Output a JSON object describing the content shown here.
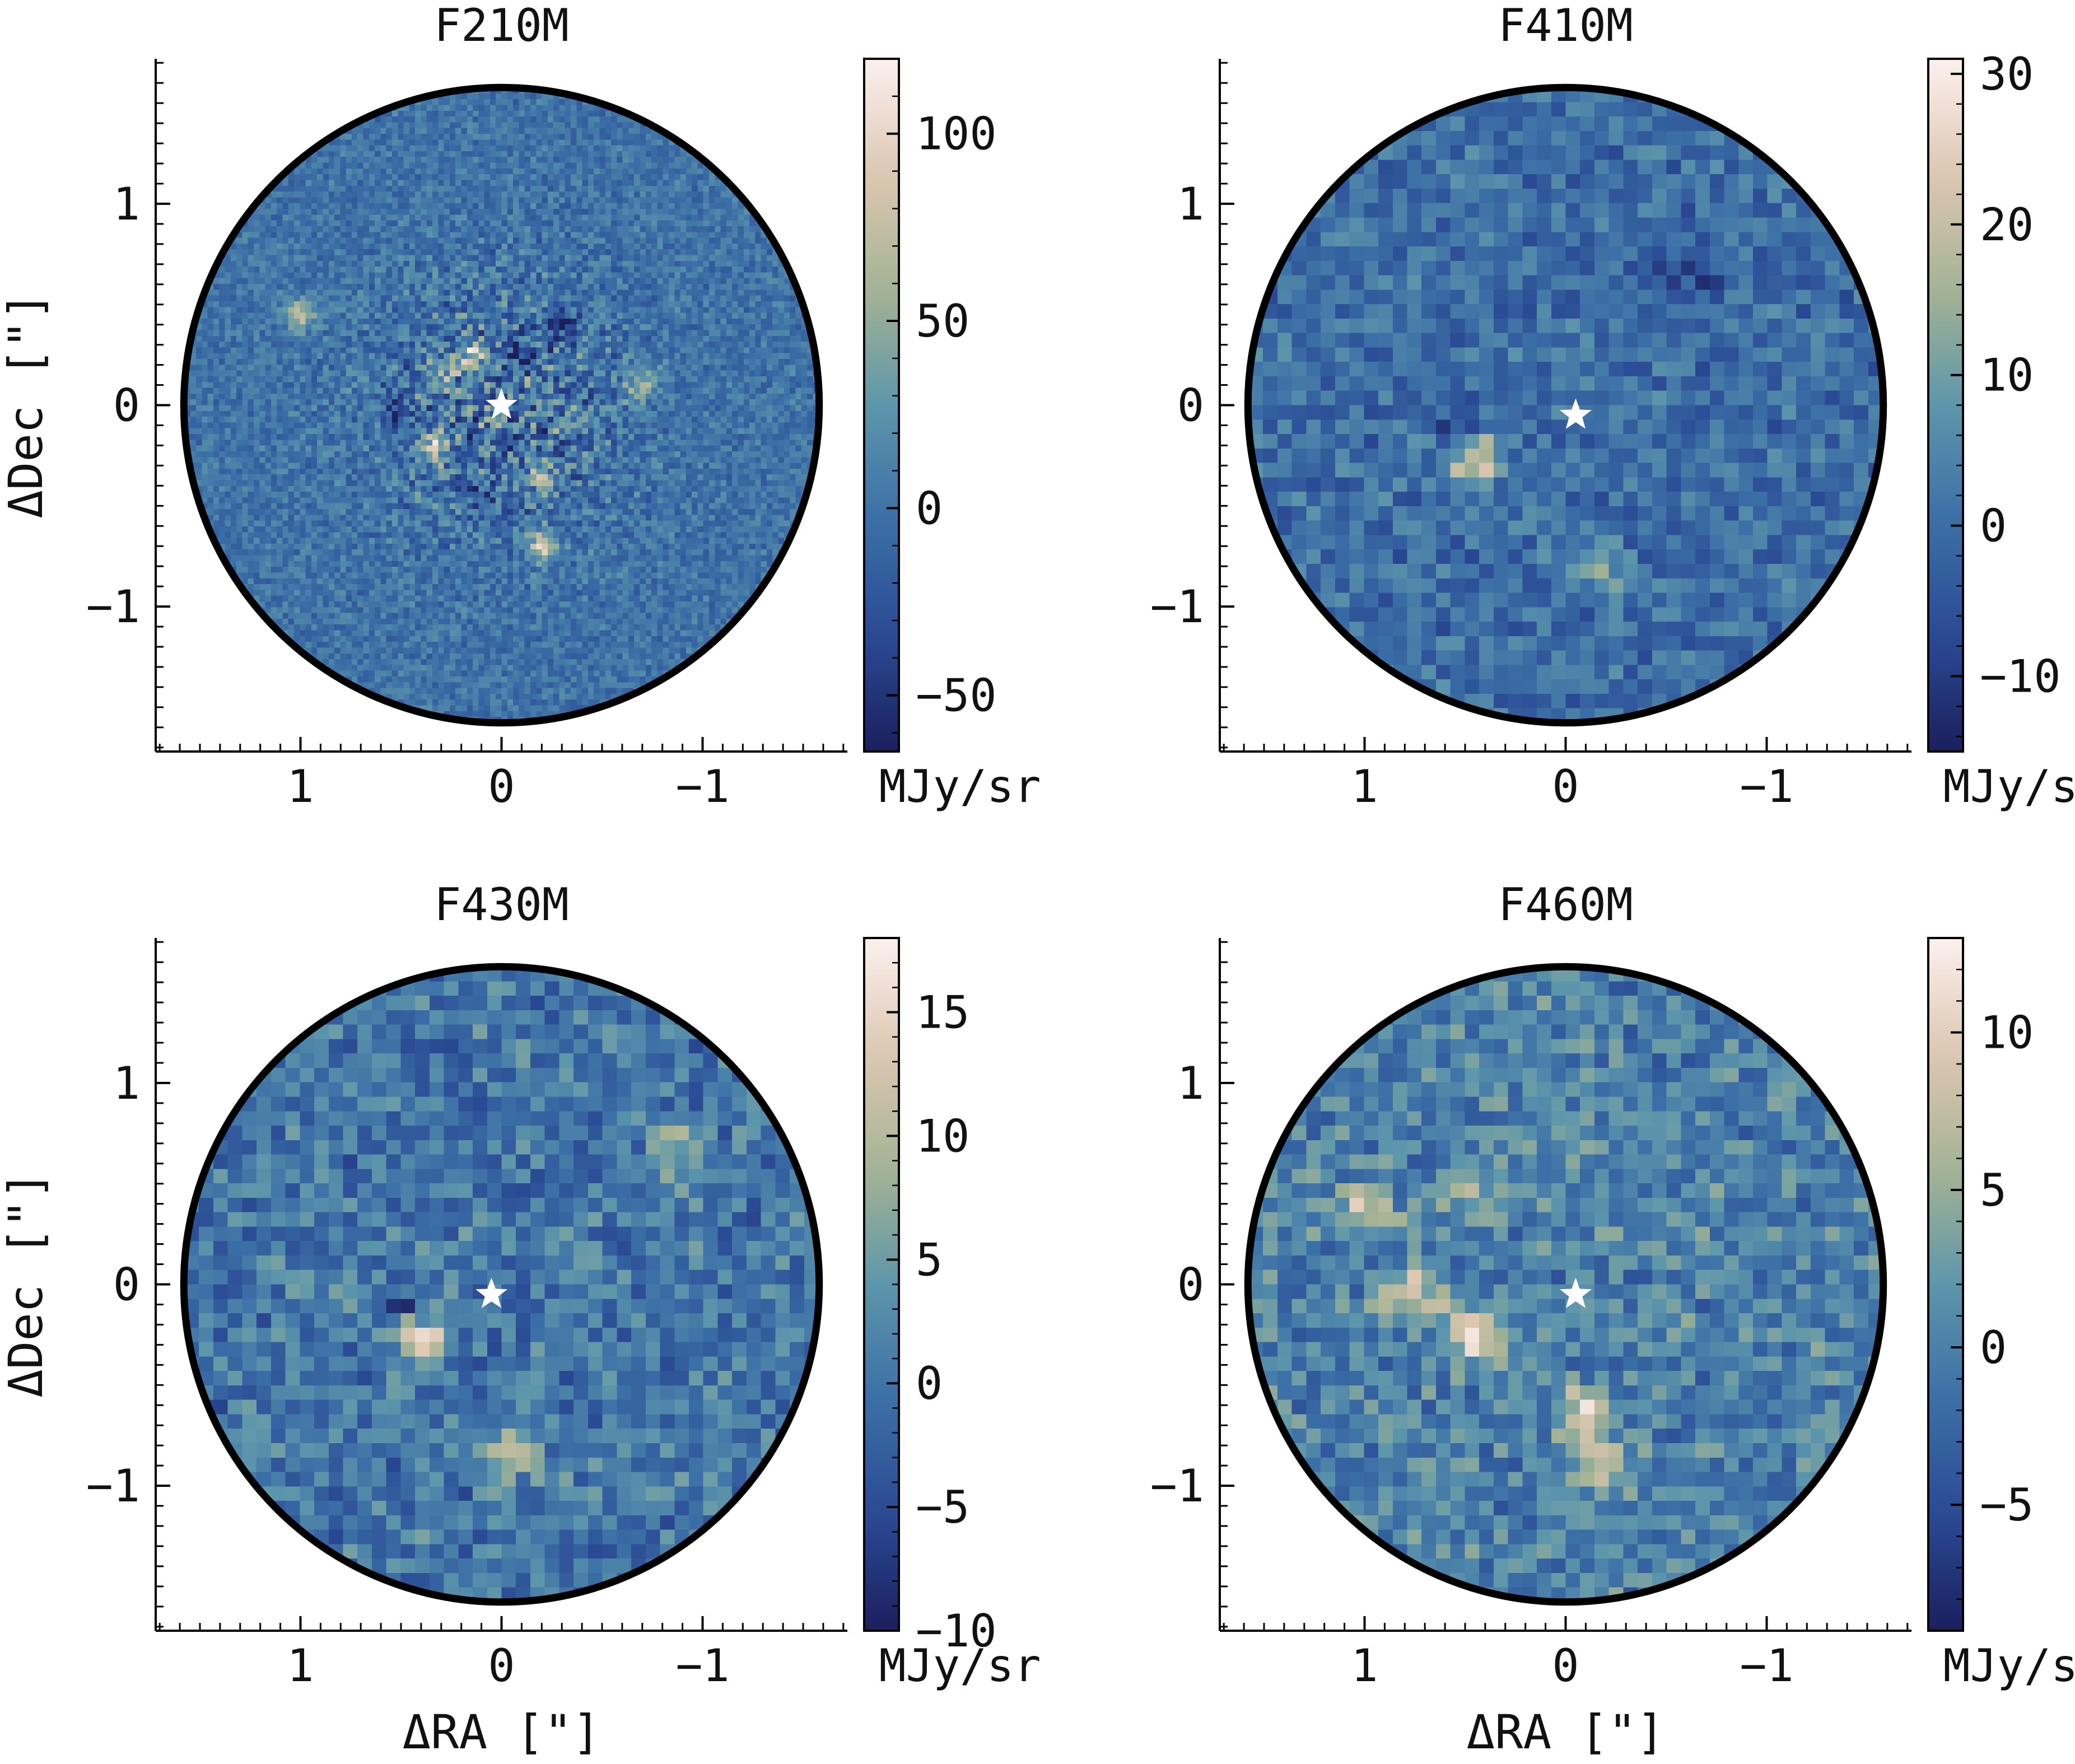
{
  "figure": {
    "unit_label": "MJy/sr",
    "xlabel": "ΔRA [\"]",
    "ylabel": "ΔDec [\"]",
    "colormap": [
      "#1b1f5e",
      "#2a4a94",
      "#3c6fa6",
      "#5d96ab",
      "#a5b394",
      "#ddc7b2",
      "#fcf1ee"
    ]
  },
  "chart_data": [
    {
      "type": "heatmap",
      "title": "F210M",
      "xlim": [
        1.72,
        -1.72
      ],
      "ylim": [
        -1.72,
        1.72
      ],
      "xticks": [
        1,
        0,
        -1
      ],
      "yticks": [
        1,
        0,
        -1
      ],
      "field_radius": 1.58,
      "star": [
        0.0,
        0.0
      ],
      "grid_size": 120,
      "noise_level": 0.1,
      "clim": [
        -65,
        120
      ],
      "cbar_ticks": [
        100,
        50,
        0,
        -50
      ],
      "features": [
        {
          "x": 0.4,
          "y": -0.2,
          "amp": -55
        },
        {
          "x": 0.35,
          "y": -0.2,
          "amp": 110
        },
        {
          "x": 0.3,
          "y": 0.15,
          "amp": 45
        },
        {
          "x": -0.1,
          "y": 0.25,
          "amp": -50
        },
        {
          "x": 0.15,
          "y": 0.25,
          "amp": 60
        },
        {
          "x": -0.2,
          "y": -0.7,
          "amp": 75
        },
        {
          "x": 1.0,
          "y": 0.45,
          "amp": 70
        },
        {
          "x": -0.7,
          "y": 0.1,
          "amp": 50
        },
        {
          "x": -0.2,
          "y": -0.35,
          "amp": 45
        },
        {
          "x": 0.5,
          "y": -0.05,
          "amp": -45
        },
        {
          "x": -0.3,
          "y": 0.4,
          "amp": -40
        },
        {
          "x": 0.1,
          "y": -0.45,
          "amp": -40
        }
      ]
    },
    {
      "type": "heatmap",
      "title": "F410M",
      "xlim": [
        1.72,
        -1.72
      ],
      "ylim": [
        -1.72,
        1.72
      ],
      "xticks": [
        1,
        0,
        -1
      ],
      "yticks": [
        1,
        0,
        -1
      ],
      "field_radius": 1.58,
      "star": [
        -0.05,
        -0.05
      ],
      "grid_size": 48,
      "noise_level": 0.14,
      "clim": [
        -15,
        31
      ],
      "cbar_ticks": [
        30,
        20,
        10,
        0,
        -10
      ],
      "features": [
        {
          "x": 0.45,
          "y": -0.25,
          "amp": 31
        },
        {
          "x": 0.5,
          "y": -0.15,
          "amp": -14
        },
        {
          "x": -0.15,
          "y": -0.8,
          "amp": 12
        },
        {
          "x": -0.7,
          "y": 0.65,
          "amp": -8
        },
        {
          "x": -0.45,
          "y": 0.7,
          "amp": -7
        }
      ]
    },
    {
      "type": "heatmap",
      "title": "F430M",
      "xlim": [
        1.72,
        -1.72
      ],
      "ylim": [
        -1.72,
        1.72
      ],
      "xticks": [
        1,
        0,
        -1
      ],
      "yticks": [
        1,
        0,
        -1
      ],
      "field_radius": 1.58,
      "star": [
        0.05,
        -0.05
      ],
      "grid_size": 48,
      "noise_level": 0.17,
      "clim": [
        -10,
        18
      ],
      "cbar_ticks": [
        15,
        10,
        5,
        0,
        -5,
        -10
      ],
      "features": [
        {
          "x": 0.4,
          "y": -0.25,
          "amp": 18
        },
        {
          "x": 0.45,
          "y": -0.13,
          "amp": -9
        },
        {
          "x": -0.05,
          "y": -0.85,
          "amp": 10
        },
        {
          "x": -0.85,
          "y": 0.65,
          "amp": 9
        },
        {
          "x": 0.8,
          "y": -0.05,
          "amp": 6
        }
      ]
    },
    {
      "type": "heatmap",
      "title": "F460M",
      "xlim": [
        1.72,
        -1.72
      ],
      "ylim": [
        -1.72,
        1.72
      ],
      "xticks": [
        1,
        0,
        -1
      ],
      "yticks": [
        1,
        0,
        -1
      ],
      "field_radius": 1.58,
      "star": [
        -0.05,
        -0.05
      ],
      "grid_size": 48,
      "noise_level": 0.17,
      "clim": [
        -9,
        13
      ],
      "cbar_ticks": [
        10,
        5,
        0,
        -5
      ],
      "features": [
        {
          "x": 0.45,
          "y": -0.25,
          "amp": 13
        },
        {
          "x": 0.75,
          "y": -0.05,
          "amp": 10
        },
        {
          "x": -0.1,
          "y": -0.65,
          "amp": 9
        },
        {
          "x": -0.15,
          "y": -0.9,
          "amp": 9
        },
        {
          "x": 1.0,
          "y": 0.35,
          "amp": 7
        },
        {
          "x": 0.5,
          "y": 0.45,
          "amp": 6
        }
      ]
    }
  ]
}
